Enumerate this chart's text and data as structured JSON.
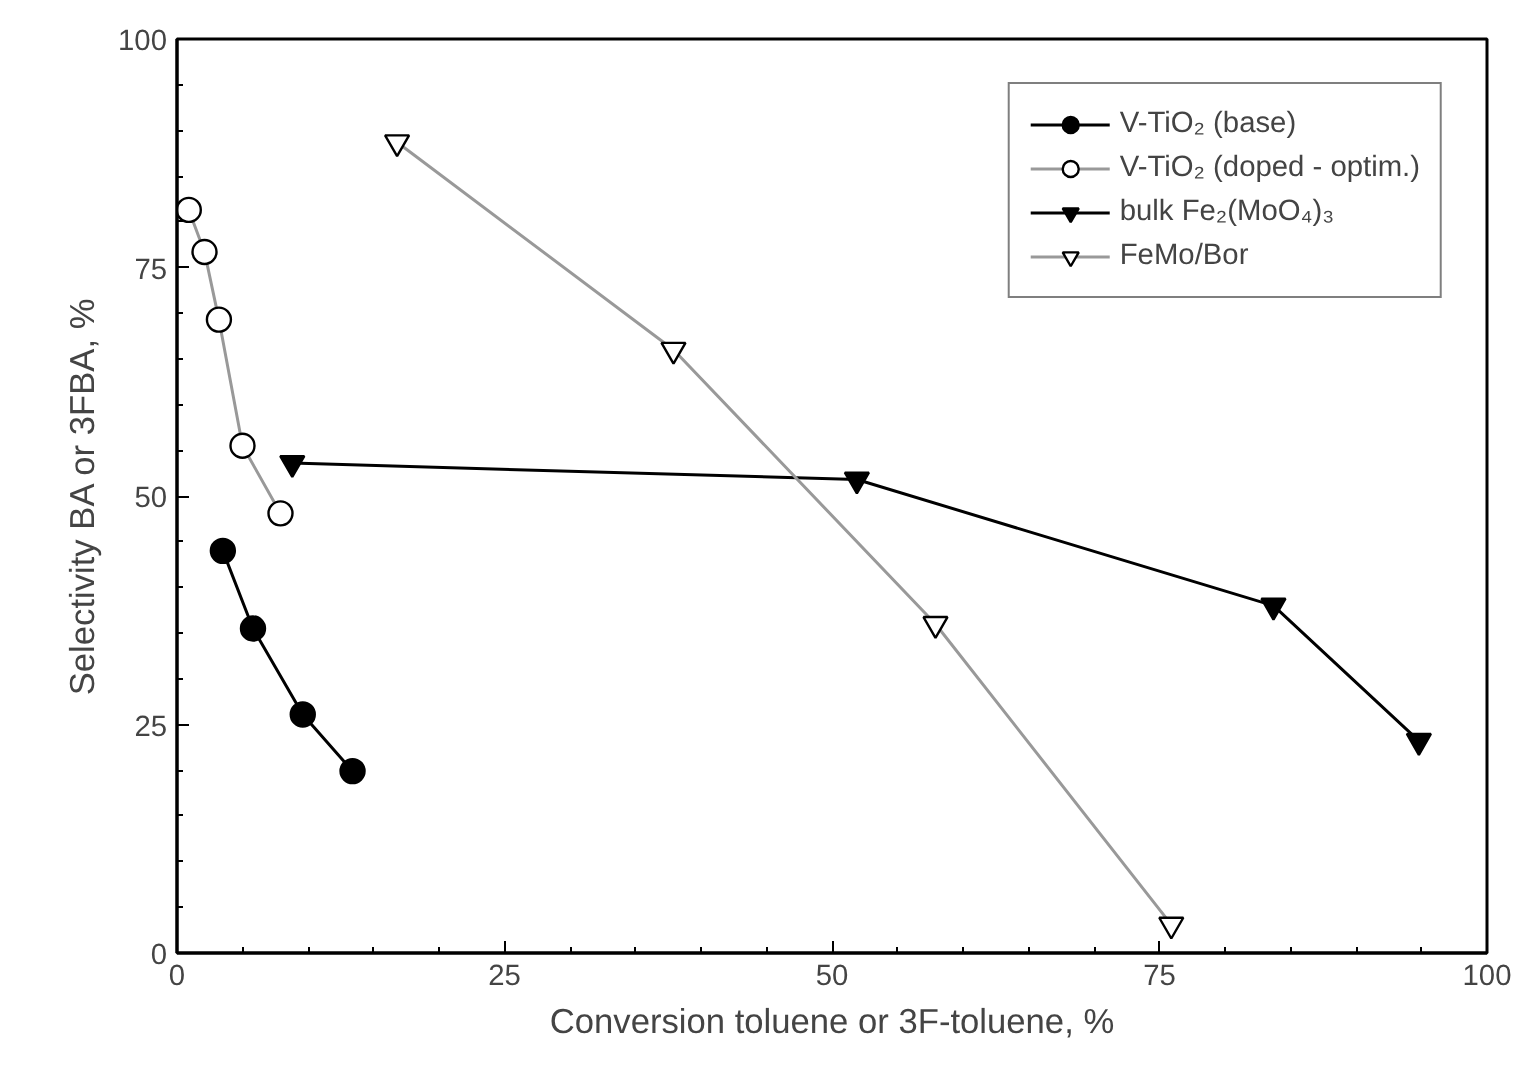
{
  "chart_data": {
    "type": "line",
    "xlabel": "Conversion toluene or 3F-toluene, %",
    "ylabel": "Selectivity BA or 3FBA, %",
    "xlim": [
      0,
      100
    ],
    "ylim": [
      0,
      100
    ],
    "xticks": [
      0,
      25,
      50,
      75,
      100
    ],
    "yticks": [
      0,
      25,
      50,
      75,
      100
    ],
    "grid": false,
    "legend": "top right",
    "line_style": "solid",
    "series": [
      {
        "name": "V-TiO₂ (base)",
        "color": "#000000",
        "marker": "circle",
        "x": [
          3.5,
          5.8,
          9.6,
          13.4
        ],
        "values": [
          44.0,
          35.5,
          26.1,
          19.9
        ]
      },
      {
        "name": "V-TiO₂ (doped - optim.)",
        "color": "#999999",
        "marker": "circle",
        "x": [
          0.9,
          2.1,
          3.2,
          5.0,
          7.9
        ],
        "values": [
          81.3,
          76.7,
          69.3,
          55.5,
          48.1
        ]
      },
      {
        "name": "bulk Fe₂(MoO₄)₃",
        "color": "#000000",
        "marker": "triangle",
        "x": [
          8.8,
          51.9,
          83.7,
          94.8
        ],
        "values": [
          53.6,
          51.8,
          38.0,
          23.2
        ]
      },
      {
        "name": "FeMo/Bor",
        "color": "#999999",
        "marker": "triangle",
        "x": [
          16.8,
          37.9,
          57.9,
          75.9
        ],
        "values": [
          88.7,
          66.0,
          36.0,
          3.1
        ]
      }
    ]
  }
}
